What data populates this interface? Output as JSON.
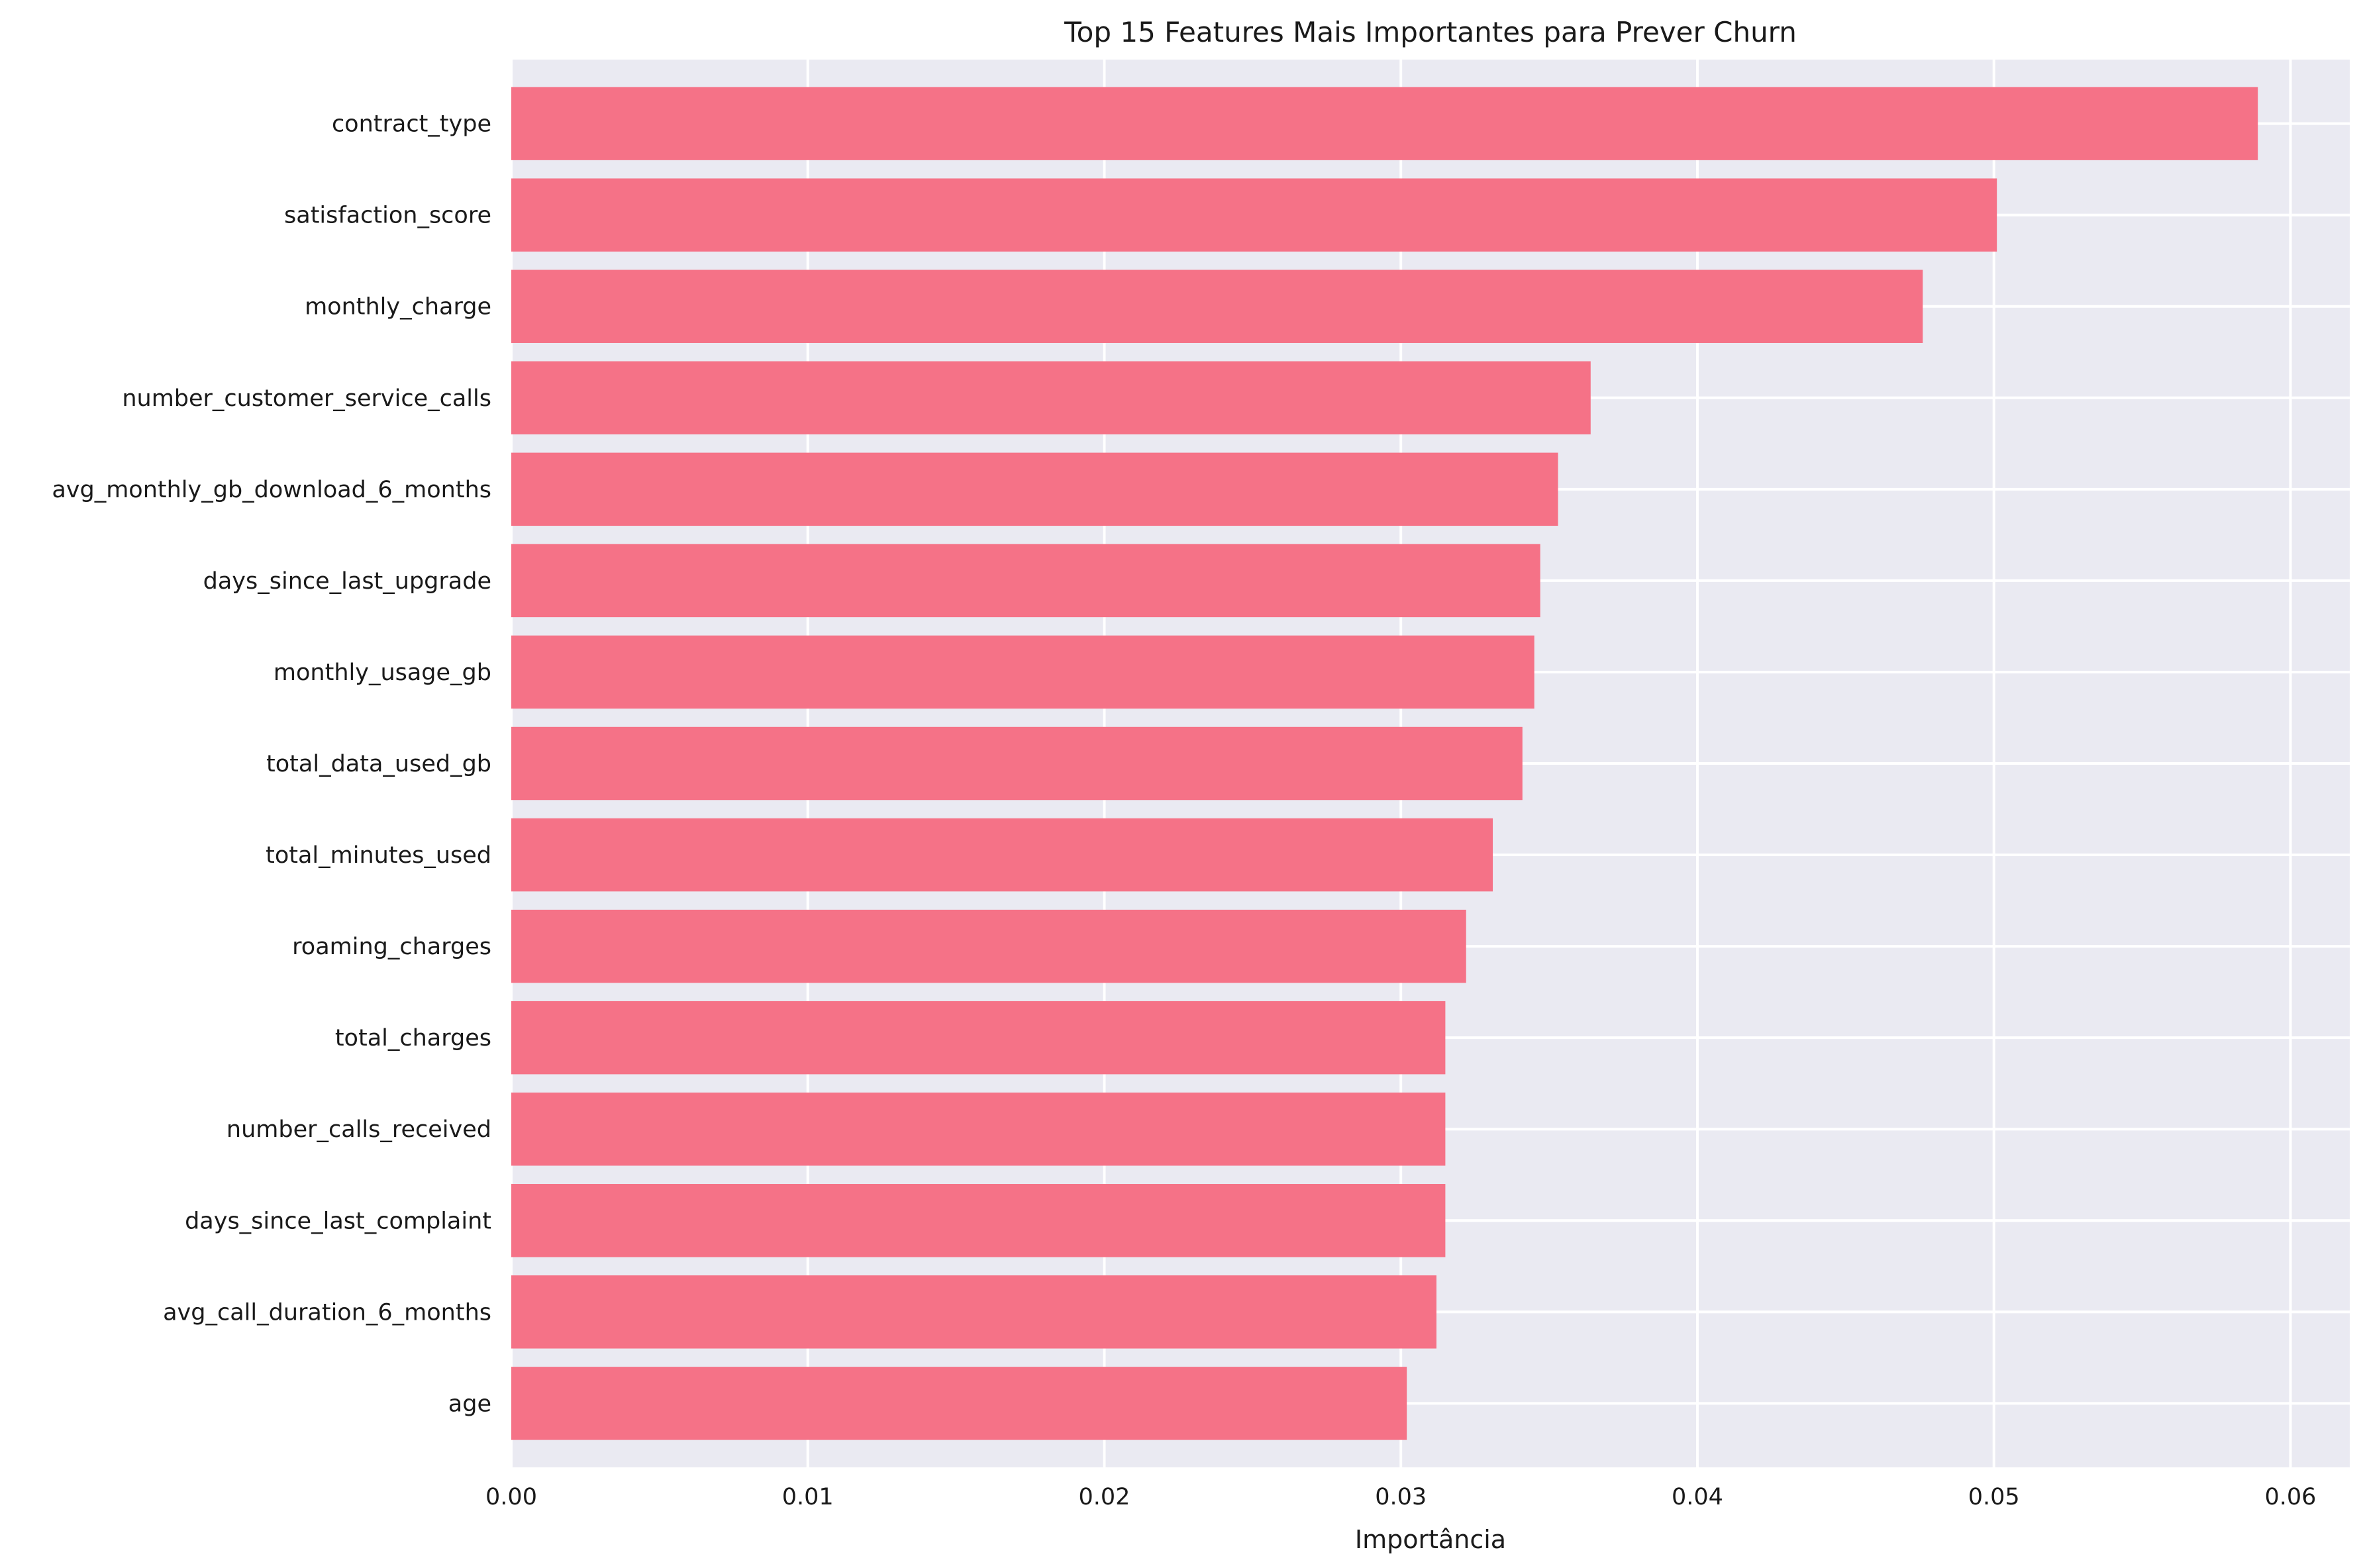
{
  "chart_data": {
    "type": "bar",
    "orientation": "horizontal",
    "title": "Top 15 Features Mais Importantes para Prever Churn",
    "xlabel": "Importância",
    "ylabel": "",
    "xlim": [
      0.0,
      0.062
    ],
    "xticks": [
      "0.00",
      "0.01",
      "0.02",
      "0.03",
      "0.04",
      "0.05",
      "0.06"
    ],
    "grid": true,
    "categories": [
      "contract_type",
      "satisfaction_score",
      "monthly_charge",
      "number_customer_service_calls",
      "avg_monthly_gb_download_6_months",
      "days_since_last_upgrade",
      "monthly_usage_gb",
      "total_data_used_gb",
      "total_minutes_used",
      "roaming_charges",
      "total_charges",
      "number_calls_received",
      "days_since_last_complaint",
      "avg_call_duration_6_months",
      "age"
    ],
    "values": [
      0.0589,
      0.0501,
      0.0476,
      0.0364,
      0.0353,
      0.0347,
      0.0345,
      0.0341,
      0.0331,
      0.0322,
      0.0315,
      0.0315,
      0.0315,
      0.0312,
      0.0302
    ],
    "colors": {
      "bar": "#f57287",
      "plot_background": "#eaeaf2",
      "grid": "#ffffff"
    }
  }
}
